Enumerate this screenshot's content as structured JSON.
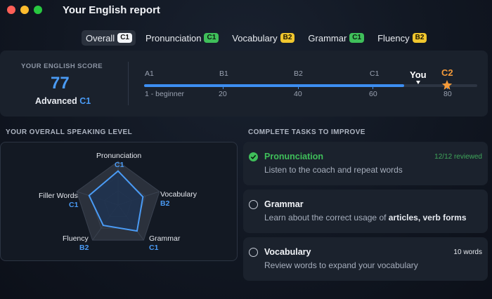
{
  "window": {
    "title": "Your English report"
  },
  "tabs": [
    {
      "label": "Overall",
      "badge": "C1",
      "active": true
    },
    {
      "label": "Pronunciation",
      "badge": "C1"
    },
    {
      "label": "Vocabulary",
      "badge": "B2"
    },
    {
      "label": "Grammar",
      "badge": "C1"
    },
    {
      "label": "Fluency",
      "badge": "B2"
    }
  ],
  "score": {
    "heading": "YOUR ENGLISH SCORE",
    "value": "77",
    "level_text": "Advanced",
    "level": "C1"
  },
  "scale": {
    "levels": [
      "A1",
      "B1",
      "B2",
      "C1"
    ],
    "marks": [
      "1 - beginner",
      "20",
      "40",
      "60",
      "80"
    ],
    "you_label": "You",
    "target_label": "C2",
    "progress_fraction": 0.77,
    "colors": {
      "fill": "#3d8ef2",
      "target": "#f39a3a"
    }
  },
  "speaking": {
    "heading": "YOUR OVERALL SPEAKING LEVEL",
    "axes": [
      {
        "name": "Pronunciation",
        "level": "C1",
        "value": 0.78
      },
      {
        "name": "Vocabulary",
        "level": "B2",
        "value": 0.6
      },
      {
        "name": "Grammar",
        "level": "C1",
        "value": 0.74
      },
      {
        "name": "Fluency",
        "level": "B2",
        "value": 0.58
      },
      {
        "name": "Filler Words",
        "level": "C1",
        "value": 0.7
      }
    ],
    "colors": {
      "line": "#4a9bf5",
      "fill": "#1f3350",
      "web": "#3a4250"
    }
  },
  "tasks": {
    "heading": "COMPLETE TASKS TO IMPROVE",
    "items": [
      {
        "name": "Pronunciation",
        "desc": "Listen to the coach and repeat words",
        "meta": "12/12 reviewed",
        "done": true
      },
      {
        "name": "Grammar",
        "desc_prefix": "Learn about the correct usage of ",
        "desc_bold": "articles, verb forms",
        "meta": "",
        "done": false
      },
      {
        "name": "Vocabulary",
        "desc": "Review words to expand your vocabulary",
        "meta": "10 words",
        "done": false
      }
    ]
  }
}
